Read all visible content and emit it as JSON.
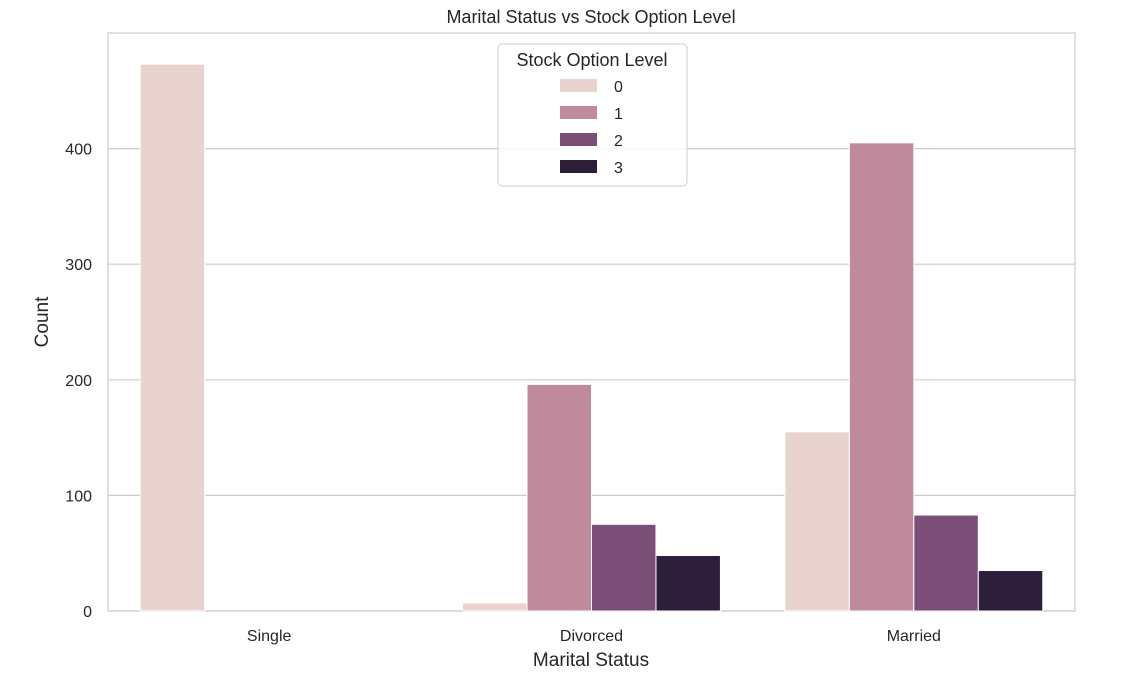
{
  "chart_data": {
    "type": "bar",
    "title": "Marital Status vs Stock Option Level",
    "xlabel": "Marital Status",
    "ylabel": "Count",
    "categories": [
      "Single",
      "Divorced",
      "Married"
    ],
    "ylim": [
      0,
      500
    ],
    "yticks": [
      0,
      100,
      200,
      300,
      400
    ],
    "grid": true,
    "legend": {
      "title": "Stock Option Level",
      "placement": "top-center"
    },
    "series": [
      {
        "name": "0",
        "color": "#e8d3ce",
        "values": [
          473,
          7,
          155
        ]
      },
      {
        "name": "1",
        "color": "#c08a9d",
        "values": [
          0,
          196,
          405
        ]
      },
      {
        "name": "2",
        "color": "#7a4e77",
        "values": [
          0,
          75,
          83
        ]
      },
      {
        "name": "3",
        "color": "#2d1e3a",
        "values": [
          0,
          48,
          35
        ]
      }
    ]
  }
}
